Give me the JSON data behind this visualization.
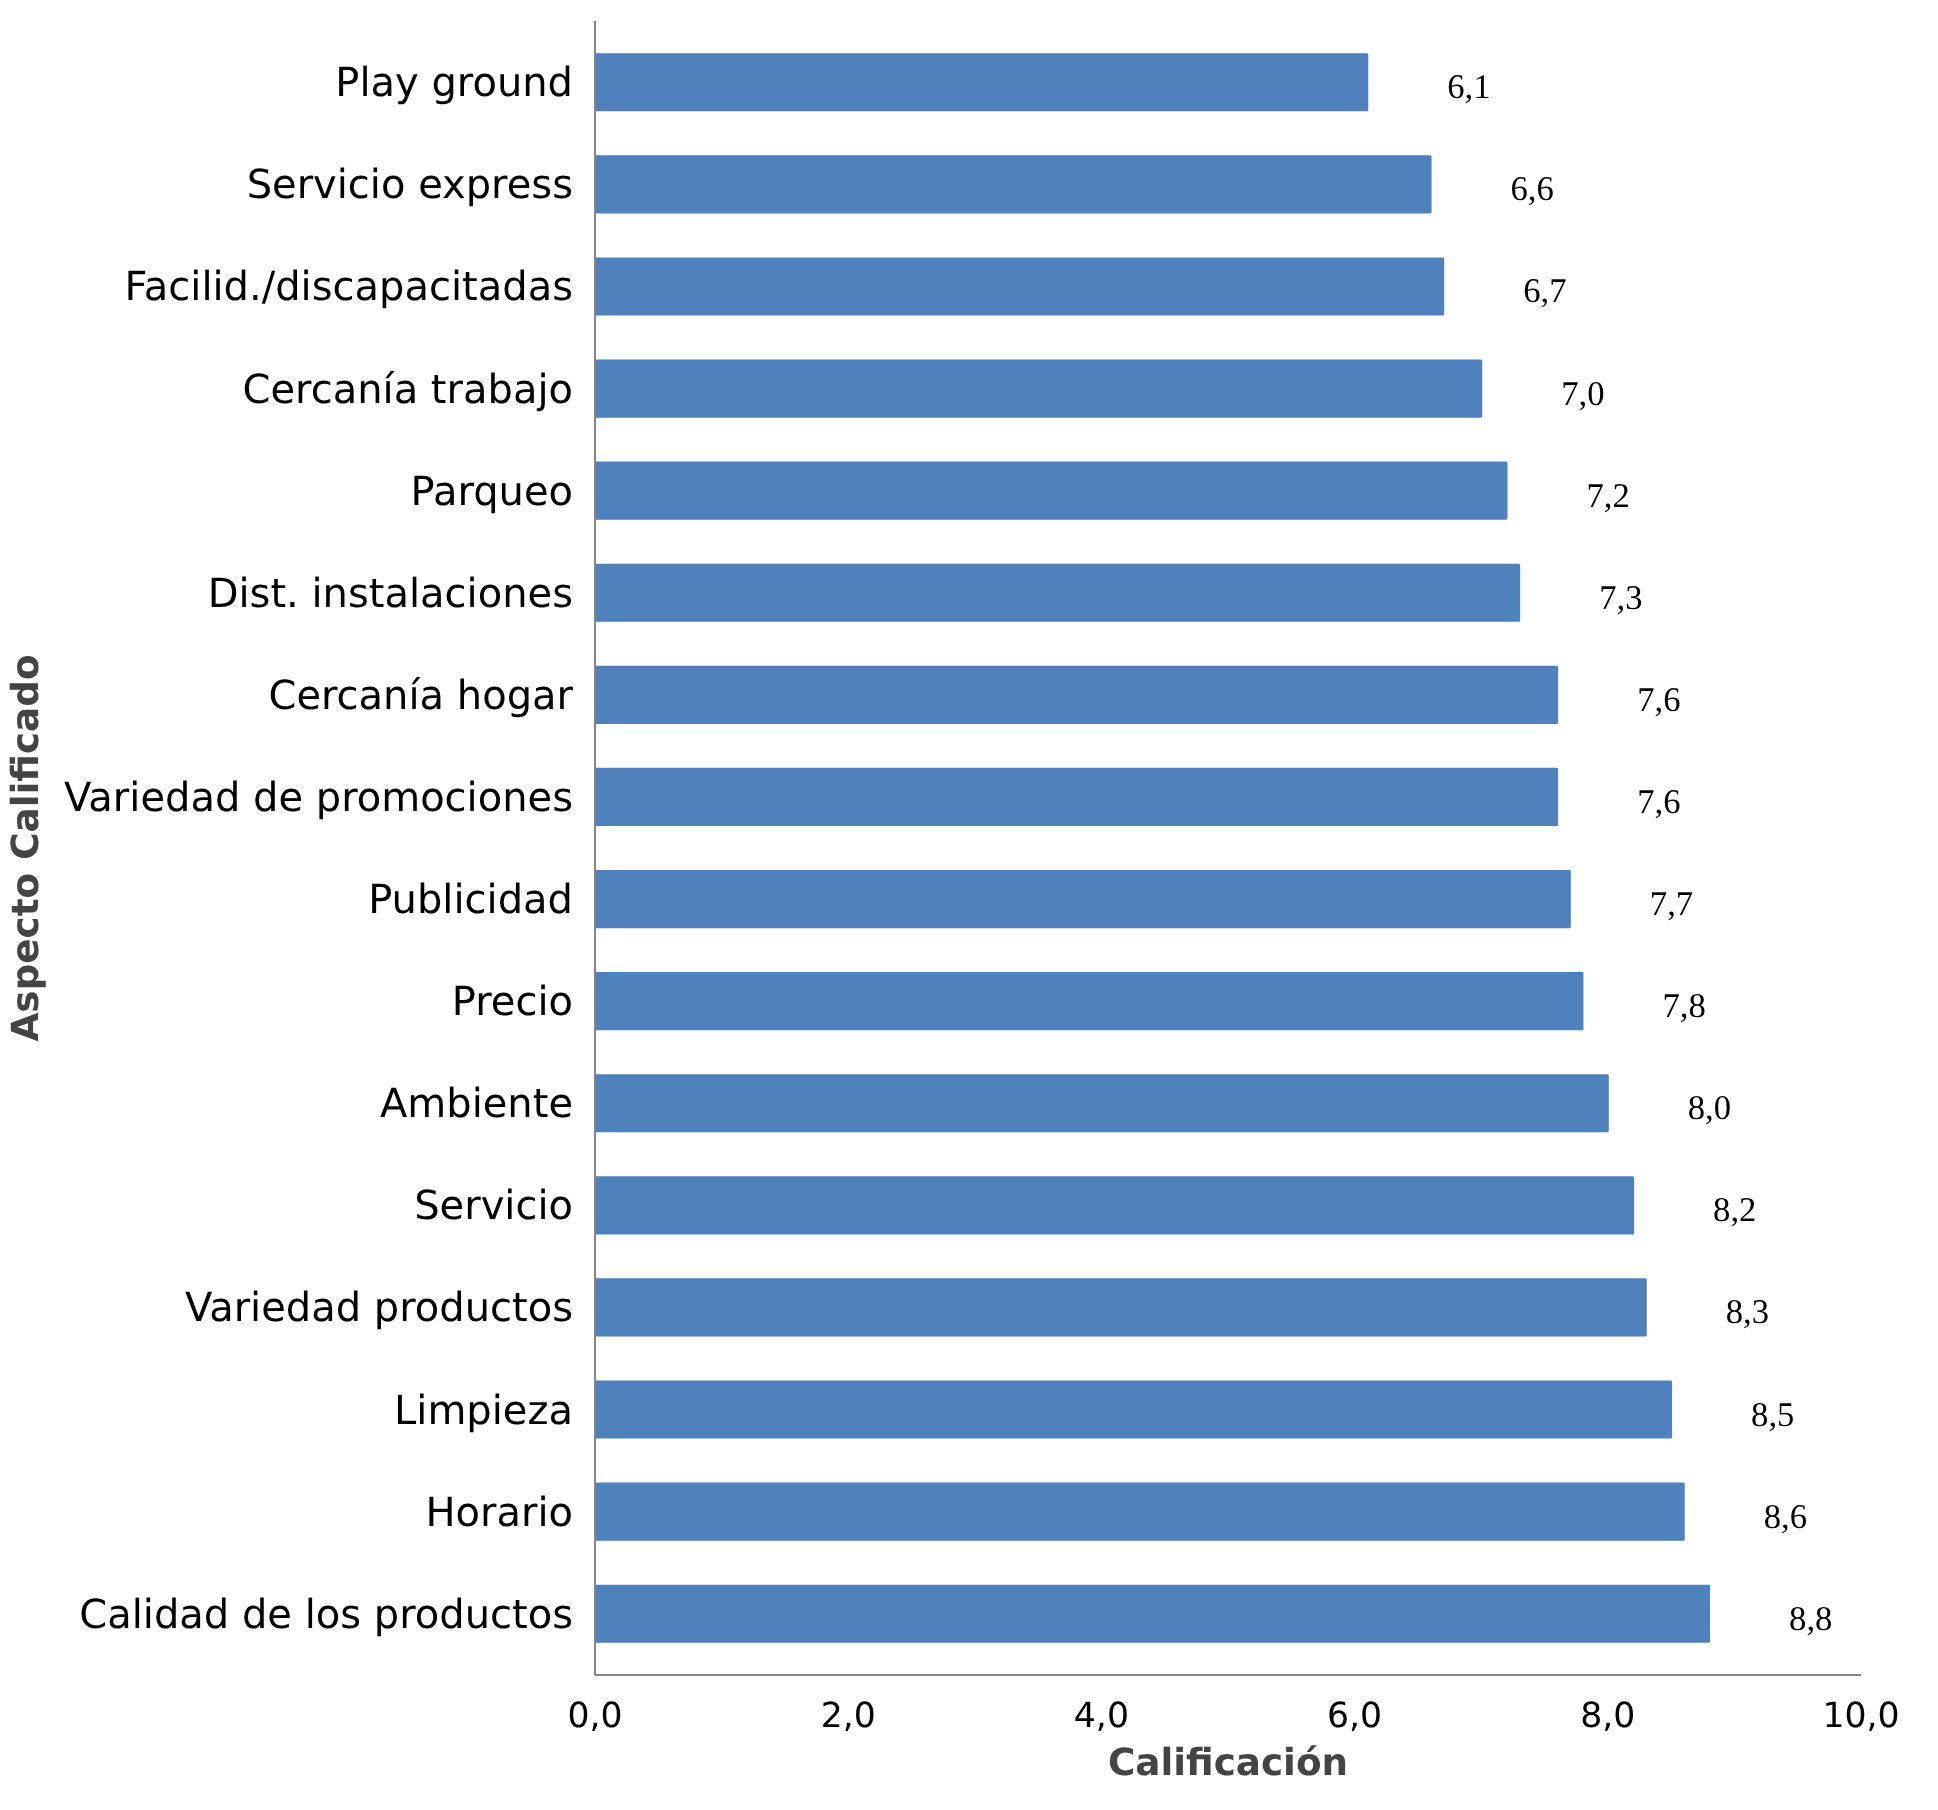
{
  "chart_data": {
    "type": "bar",
    "orientation": "horizontal",
    "xlabel": "Calificación",
    "ylabel": "Aspecto Calificado",
    "categories": [
      "Play ground",
      "Servicio express",
      "Facilid./discapacitadas",
      "Cercanía trabajo",
      "Parqueo",
      "Dist. instalaciones",
      "Cercanía hogar",
      "Variedad de promociones",
      "Publicidad",
      "Precio",
      "Ambiente",
      "Servicio",
      "Variedad productos",
      "Limpieza",
      "Horario",
      "Calidad de los productos"
    ],
    "values": [
      6.1,
      6.6,
      6.7,
      7.0,
      7.2,
      7.3,
      7.6,
      7.6,
      7.7,
      7.8,
      8.0,
      8.2,
      8.3,
      8.5,
      8.6,
      8.8
    ],
    "value_labels": [
      "6,1",
      "6,6",
      "6,7",
      "7,0",
      "7,2",
      "7,3",
      "7,6",
      "7,6",
      "7,7",
      "7,8",
      "8,0",
      "8,2",
      "8,3",
      "8,5",
      "8,6",
      "8,8"
    ],
    "color": "#4f81bd",
    "xlim": [
      0,
      10
    ],
    "xticks": [
      {
        "value": 0,
        "label": "0,0"
      },
      {
        "value": 2,
        "label": "2,0"
      },
      {
        "value": 4,
        "label": "4,0"
      },
      {
        "value": 6,
        "label": "6,0"
      },
      {
        "value": 8,
        "label": "8,0"
      },
      {
        "value": 10,
        "label": "10,0"
      }
    ]
  }
}
